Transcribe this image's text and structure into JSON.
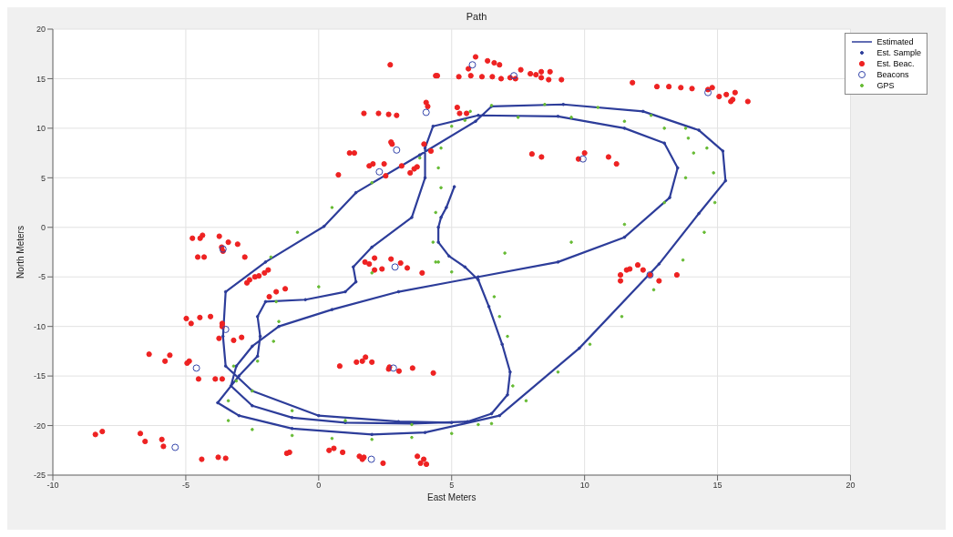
{
  "chart_data": {
    "type": "scatter",
    "title": "Path",
    "xlabel": "East Meters",
    "ylabel": "North Meters",
    "xlim": [
      -10,
      20
    ],
    "ylim": [
      -25,
      20
    ],
    "xticks": [
      -10,
      -5,
      0,
      5,
      10,
      15,
      20
    ],
    "yticks": [
      -25,
      -20,
      -15,
      -10,
      -5,
      0,
      5,
      10,
      15,
      20
    ],
    "grid": true,
    "legend": "top right",
    "series": [
      {
        "name": "Estimated",
        "type": "line",
        "color": "#2d3d9a",
        "marker": "none",
        "line_style": "solid",
        "x": [
          5.1,
          4.8,
          4.6,
          4.5,
          4.5,
          4.9,
          5.5,
          6.0,
          6.4,
          6.9,
          7.2,
          7.1,
          6.5,
          5.6,
          3.5,
          1,
          -1,
          -2.5,
          -3.3,
          -3.1,
          -2.5,
          -1.5,
          0.5,
          3,
          6,
          9,
          11.5,
          13.2,
          13.5,
          13,
          11.5,
          9,
          6,
          4.3,
          4,
          4,
          3.5,
          2,
          1.3,
          1.4,
          1,
          -0.5,
          -2,
          -2.3,
          -2.2,
          -2.3,
          -3,
          -3.8,
          -3,
          -1,
          2,
          4,
          6.8,
          9.8,
          12.8,
          14.3,
          15.3,
          15.2,
          14.3,
          12.2,
          9.2,
          6.5,
          5.9,
          3.8,
          1.4,
          0.2,
          -2,
          -3.5,
          -3.6,
          -3.5,
          -2.5,
          0,
          3,
          5
        ],
        "values": [
          4.1,
          2,
          1,
          0,
          -1.5,
          -2.9,
          -4,
          -5.3,
          -8,
          -11.8,
          -14.6,
          -16.9,
          -18.8,
          -19.6,
          -19.8,
          -19.7,
          -19.2,
          -18,
          -16,
          -14,
          -12,
          -10,
          -8.3,
          -6.5,
          -5,
          -3.5,
          -1,
          3,
          6,
          8.5,
          10,
          11.2,
          11.3,
          10.2,
          8,
          5,
          1,
          -2,
          -4,
          -5.5,
          -6.5,
          -7.3,
          -7.5,
          -9,
          -11,
          -13,
          -15,
          -17.7,
          -19,
          -20.3,
          -20.9,
          -20.7,
          -19,
          -12.2,
          -3.7,
          1.4,
          4.7,
          7.7,
          9.8,
          11.7,
          12.4,
          12.2,
          10.7,
          7.3,
          3.5,
          0.1,
          -3.5,
          -6.5,
          -11,
          -14,
          -16.5,
          -19,
          -19.6,
          -19.7
        ]
      },
      {
        "name": "Est. Sample",
        "color": "#2d3d9a",
        "marker": "circle",
        "x": [
          5.1,
          4.8,
          4.6,
          4.5,
          4.5,
          4.9,
          5.5,
          6.0,
          6.4,
          6.9,
          7.2,
          7.1,
          6.5,
          5.6,
          3.5,
          1,
          -1,
          -2.5,
          -3.3,
          -3.1,
          -2.5,
          -1.5,
          0.5,
          3,
          6,
          9,
          11.5,
          13.2,
          13.5,
          13,
          11.5,
          9,
          6,
          4.3,
          4,
          4,
          3.5,
          2,
          1.3,
          1.4,
          1,
          -0.5,
          -2,
          -2.3,
          -2.2,
          -2.3,
          -3,
          -3.8,
          -3,
          -1,
          2,
          4,
          6.8,
          9.8,
          12.8,
          14.3,
          15.3,
          15.2,
          14.3,
          12.2,
          9.2,
          6.5,
          5.9,
          3.8,
          1.4,
          0.2,
          -2,
          -3.5,
          -3.6,
          -3.5,
          -2.5,
          0,
          3,
          5
        ],
        "values": [
          4.1,
          2,
          1,
          0,
          -1.5,
          -2.9,
          -4,
          -5.3,
          -8,
          -11.8,
          -14.6,
          -16.9,
          -18.8,
          -19.6,
          -19.8,
          -19.7,
          -19.2,
          -18,
          -16,
          -14,
          -12,
          -10,
          -8.3,
          -6.5,
          -5,
          -3.5,
          -1,
          3,
          6,
          8.5,
          10,
          11.2,
          11.3,
          10.2,
          8,
          5,
          1,
          -2,
          -4,
          -5.5,
          -6.5,
          -7.3,
          -7.5,
          -9,
          -11,
          -13,
          -15,
          -17.7,
          -19,
          -20.3,
          -20.9,
          -20.7,
          -19,
          -12.2,
          -3.7,
          1.4,
          4.7,
          7.7,
          9.8,
          11.7,
          12.4,
          12.2,
          10.7,
          7.3,
          3.5,
          0.1,
          -3.5,
          -6.5,
          -11,
          -14,
          -16.5,
          -19,
          -19.6,
          -19.7
        ]
      },
      {
        "name": "Est. Beac.",
        "color": "#ee2222",
        "marker": "circle",
        "x": [
          2.69,
          4.4,
          4.04,
          4.1,
          1.7,
          2.25,
          2.63,
          2.93,
          3.96,
          4.22,
          2.72,
          2.76,
          1.16,
          1.34,
          1.9,
          2.04,
          2.46,
          2.52,
          0.74,
          3.12,
          3.44,
          3.59,
          3.7,
          -4.75,
          -4.46,
          -4.37,
          -3.74,
          -3.4,
          -3.05,
          -2.78,
          -4.55,
          -4.31,
          -3.65,
          -3.6,
          -2.7,
          -2.6,
          -2.4,
          -2.25,
          -2.04,
          -1.9,
          -1.86,
          -1.6,
          -1.26,
          1.74,
          1.9,
          2.1,
          2.1,
          2.38,
          2.72,
          3.08,
          3.33,
          3.89,
          -4.98,
          -4.8,
          -4.47,
          -4.07,
          -3.63,
          -3.63,
          -3.75,
          -3.2,
          -2.9,
          -6.38,
          -5.78,
          -5.6,
          -4.95,
          -4.87,
          -4.52,
          -3.89,
          -3.63,
          0.79,
          1.42,
          1.64,
          1.76,
          2.0,
          2.63,
          2.66,
          3.02,
          3.53,
          4.31,
          -8.4,
          -8.14,
          -6.71,
          -6.53,
          -5.9,
          -5.84,
          -4.4,
          -3.78,
          -3.5,
          -1.2,
          -1.1,
          0.39,
          0.57,
          0.9,
          1.53,
          1.64,
          1.7,
          2.42,
          3.71,
          3.83,
          3.95,
          4.05,
          5.9,
          6.35,
          6.6,
          6.8,
          5.63,
          4.46,
          5.27,
          5.72,
          6.14,
          6.53,
          6.86,
          7.2,
          7.4,
          7.6,
          7.96,
          8.17,
          8.37,
          8.37,
          8.7,
          8.65,
          9.13,
          11.8,
          12.72,
          13.17,
          13.62,
          14.04,
          14.64,
          14.8,
          15.06,
          15.33,
          15.5,
          15.57,
          15.66,
          16.14,
          5.21,
          5.3,
          5.56,
          8.02,
          8.38,
          10.0,
          9.77,
          10.9,
          11.2,
          11.35,
          11.35,
          11.58,
          11.7,
          12.0,
          12.2,
          12.46,
          12.8,
          13.47
        ],
        "values": [
          16.4,
          15.3,
          12.6,
          12.2,
          11.5,
          11.5,
          11.4,
          11.3,
          8.4,
          7.7,
          8.6,
          8.4,
          7.5,
          7.5,
          6.2,
          6.4,
          6.4,
          5.2,
          5.3,
          6.2,
          5.5,
          5.9,
          6.1,
          -1.1,
          -1.1,
          -0.8,
          -0.9,
          -1.5,
          -1.7,
          -3,
          -3,
          -3,
          -2.0,
          -2.4,
          -5.6,
          -5.3,
          -5.0,
          -4.9,
          -4.6,
          -4.3,
          -7.0,
          -6.5,
          -6.2,
          -3.5,
          -3.7,
          -3.1,
          -4.3,
          -4.2,
          -3.2,
          -3.6,
          -4.1,
          -4.6,
          -9.2,
          -9.7,
          -9.1,
          -9.0,
          -9.7,
          -10.0,
          -11.2,
          -11.4,
          -11.1,
          -12.8,
          -13.5,
          -12.9,
          -13.7,
          -13.5,
          -15.3,
          -15.3,
          -15.3,
          -14.0,
          -13.6,
          -13.5,
          -13.1,
          -13.6,
          -14.3,
          -14.1,
          -14.5,
          -14.2,
          -14.7,
          -20.9,
          -20.6,
          -20.8,
          -21.6,
          -21.4,
          -22.1,
          -23.4,
          -23.2,
          -23.3,
          -22.8,
          -22.7,
          -22.5,
          -22.3,
          -22.7,
          -23.1,
          -23.4,
          -23.2,
          -23.8,
          -23.1,
          -23.8,
          -23.4,
          -23.9,
          17.2,
          16.8,
          16.6,
          16.4,
          16.0,
          15.3,
          15.2,
          15.3,
          15.2,
          15.2,
          15.0,
          15.1,
          15.0,
          15.9,
          15.5,
          15.4,
          15.7,
          15.1,
          15.7,
          14.9,
          14.9,
          14.6,
          14.2,
          14.2,
          14.1,
          14.0,
          13.9,
          14.1,
          13.2,
          13.4,
          12.7,
          12.9,
          13.6,
          12.7,
          12.1,
          11.5,
          11.5,
          7.4,
          7.1,
          7.5,
          6.9,
          7.1,
          6.4,
          -4.8,
          -5.4,
          -4.3,
          -4.2,
          -3.8,
          -4.3,
          -4.8,
          -5.4,
          -4.8
        ]
      },
      {
        "name": "Beacons",
        "color": "#3344aa",
        "marker": "circle",
        "x": [
          5.78,
          7.34,
          4.04,
          2.93,
          2.28,
          14.64,
          9.94,
          -3.5,
          -4.6,
          -5.4,
          1.98,
          2.81,
          -3.6,
          2.87,
          12.46
        ],
        "values": [
          16.4,
          15.3,
          11.6,
          7.8,
          5.6,
          13.6,
          6.9,
          -10.3,
          -14.2,
          -22.2,
          -23.4,
          -14.2,
          -2.2,
          -4.0,
          -4.8
        ]
      },
      {
        "name": "GPS",
        "color": "#66bb33",
        "marker": "circle",
        "x": [
          -3.4,
          -2.5,
          -1,
          0.5,
          2,
          3.5,
          5,
          6.5,
          7.8,
          9,
          10.2,
          11.4,
          12.6,
          13.7,
          14.5,
          14.9,
          14.85,
          14.6,
          13.8,
          12.5,
          10.5,
          8.5,
          6.5,
          5.7,
          5,
          4.6,
          4.5,
          4.6,
          4.4,
          4.3,
          4.4,
          5,
          -1.6,
          -1.5,
          -1.7,
          -2.3,
          -3.1,
          -3.4,
          14.1,
          13.9,
          13,
          11.5,
          9.5,
          7.5,
          5.5,
          3.8,
          2,
          0.5,
          -0.8,
          -1.8,
          13.8,
          13,
          11.5,
          9.5,
          7,
          4.5,
          2,
          0,
          -3.2,
          -2.5,
          -1,
          1,
          3.5,
          6,
          7.3,
          7.1,
          6.6,
          6.8
        ],
        "values": [
          -19.5,
          -20.4,
          -21,
          -21.3,
          -21.4,
          -21.2,
          -20.8,
          -19.8,
          -17.5,
          -14.6,
          -11.8,
          -9,
          -6.3,
          -3.3,
          -0.5,
          2.5,
          5.5,
          8,
          10,
          11.3,
          12.1,
          12.4,
          12.3,
          11.7,
          10.2,
          8,
          6,
          4,
          1.5,
          -1.5,
          -3.5,
          -4.5,
          -7.5,
          -9.5,
          -11.5,
          -13.5,
          -15.5,
          -17.5,
          7.5,
          9,
          10,
          10.7,
          11.1,
          11.1,
          10.8,
          7,
          4.5,
          2,
          -0.5,
          -3,
          5,
          2.5,
          0.3,
          -1.5,
          -2.6,
          -3.5,
          -4.6,
          -6,
          -14,
          -16.5,
          -18.5,
          -19.5,
          -19.9,
          -19.9,
          -16,
          -11,
          -7,
          -9
        ]
      }
    ]
  }
}
